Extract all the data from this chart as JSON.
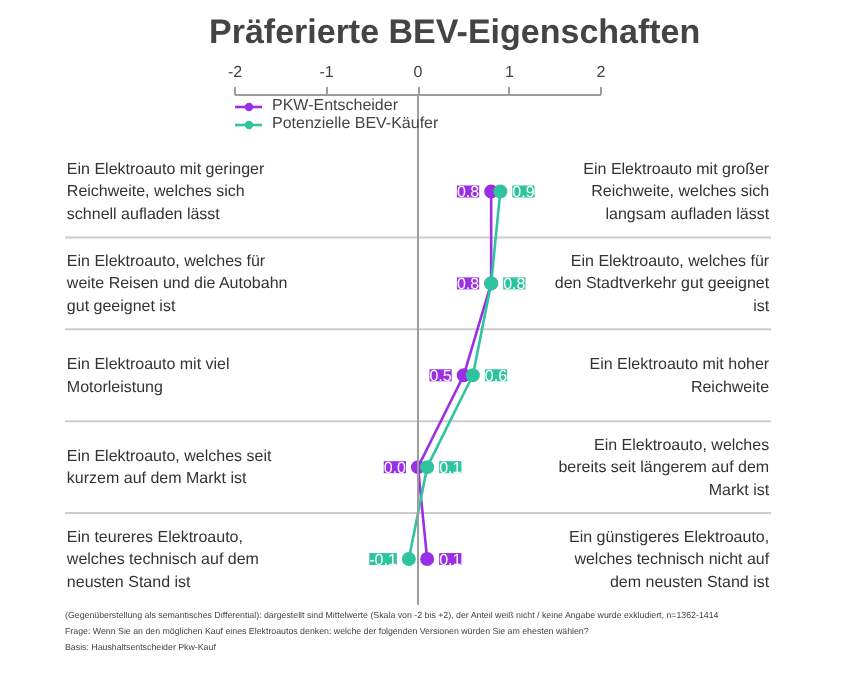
{
  "chart_data": {
    "type": "line",
    "orientation": "horizontal",
    "title": "Präferierte BEV-Eigenschaften",
    "categories": [
      "Ein Elektroauto mit geringer Reichweite, welches sich schnell aufladen lässt",
      "Ein Elektroauto, welches für weite Reisen und die Autobahn gut geeignet ist",
      "Ein Elektroauto mit viel Motorleistung",
      "Ein Elektroauto, welches seit kurzem auf dem Markt ist",
      "Ein teureres Elektroauto, welches technisch auf dem neusten Stand ist"
    ],
    "y2_categories": [
      "Ein Elektroauto mit großer Reichweite, welches sich langsam aufladen lässt",
      "Ein Elektroauto, welches für den Stadtverkehr gut geeignet ist",
      "Ein Elektroauto mit hoher Reichweite",
      "Ein Elektroauto, welches bereits seit längerem auf dem Markt ist",
      "Ein günstigeres Elektroauto, welches technisch nicht auf dem neusten Stand ist"
    ],
    "series": [
      {
        "name": "PKW-Entscheider",
        "color": "#9a2fe6",
        "values": [
          0.8,
          0.8,
          0.5,
          0.0,
          0.1
        ],
        "value_labels": [
          "0.8",
          "0.8",
          "0.5",
          "0.0",
          "0.1"
        ]
      },
      {
        "name": "Potenzielle BEV-Käufer",
        "color": "#2ec4a0",
        "values": [
          0.9,
          0.8,
          0.6,
          0.1,
          -0.1
        ],
        "value_labels": [
          "0.9",
          "0.8",
          "0.6",
          "0.1",
          "-0.1"
        ]
      }
    ],
    "xlim": [
      -2,
      2
    ],
    "xticks": [
      -2,
      -1,
      0,
      1,
      2
    ],
    "ref_lines": [
      {
        "axis": "x",
        "value": 0,
        "color": "#9e9e9e"
      }
    ],
    "grid": "y",
    "legend": "top",
    "marker": "circle",
    "line_style": "solid",
    "annotations": [
      "Basis: Haushaltsentscheider Pkw-Kauf",
      "Frage: Wenn Sie an den möglichen Kauf eines Elektroautos denken: welche der folgenden Versionen würden Sie am ehesten wählen?",
      "(Gegenüberstellung als semantisches Differential): dargestellt sind Mittelwerte (Skala von -2 bis +2), der Anteil weiß nicht / keine Angabe wurde exkludiert, n=1362-1414"
    ]
  }
}
